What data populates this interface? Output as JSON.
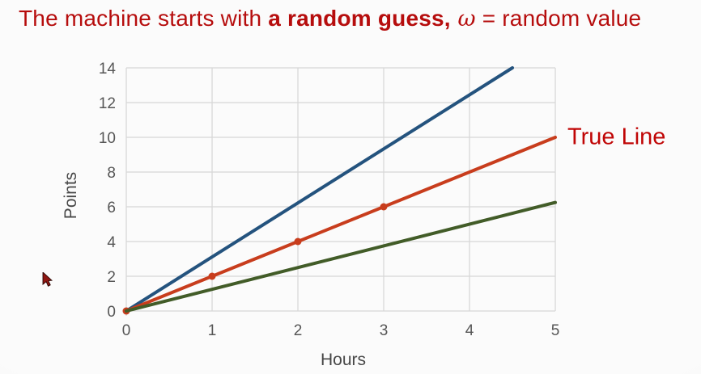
{
  "slide": {
    "title": {
      "part1": "The machine starts with ",
      "part2_bold": "a random guess,",
      "part3_omega": " ω",
      "part4": " = random value",
      "color": "#b60d0d"
    }
  },
  "icons": {
    "cursor": "arrow-pointer-cursor"
  },
  "chart_data": {
    "type": "line",
    "title": "",
    "xlabel": "Hours",
    "ylabel": "Points",
    "xlim": [
      0,
      5
    ],
    "ylim": [
      0,
      14
    ],
    "x_ticks": [
      0,
      1,
      2,
      3,
      4,
      5
    ],
    "y_ticks": [
      0,
      2,
      4,
      6,
      8,
      10,
      12,
      14
    ],
    "grid": true,
    "legend": "none",
    "gridline_color": "#d6d6d6",
    "series": [
      {
        "name": "random-guess-line",
        "color": "#24537e",
        "x": [
          0,
          4.5
        ],
        "y": [
          0,
          14
        ]
      },
      {
        "name": "true-line",
        "color": "#c83d1d",
        "x": [
          0,
          1,
          2,
          3,
          4,
          5
        ],
        "y": [
          0,
          2,
          4,
          6,
          8,
          10
        ],
        "markers": [
          [
            0,
            0
          ],
          [
            1,
            2
          ],
          [
            2,
            4
          ],
          [
            3,
            6
          ]
        ]
      },
      {
        "name": "low-guess-line",
        "color": "#425c28",
        "x": [
          0,
          5
        ],
        "y": [
          0,
          6.25
        ]
      }
    ],
    "annotations": [
      {
        "text": "True Line",
        "color": "#c00505",
        "x": 5.15,
        "y": 10
      }
    ]
  }
}
